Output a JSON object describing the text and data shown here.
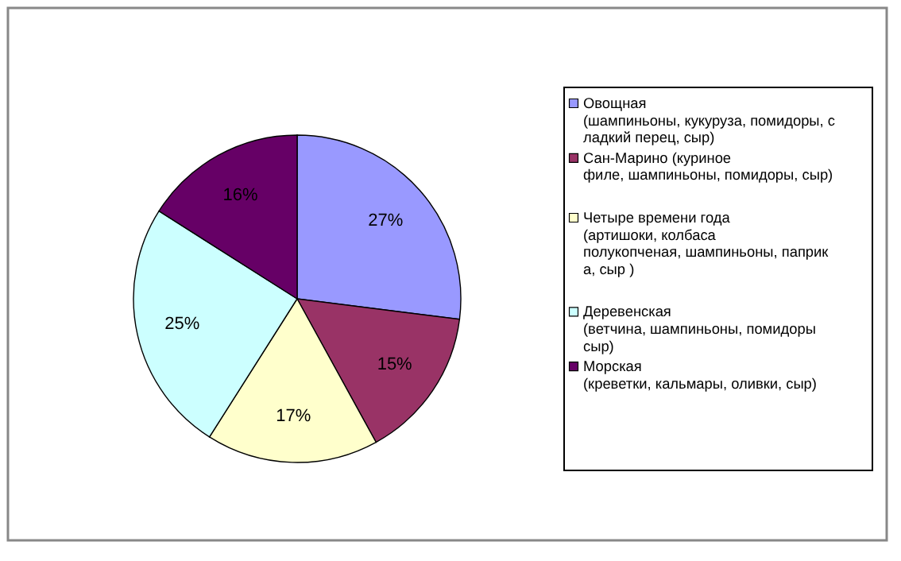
{
  "chart_data": {
    "type": "pie",
    "categories": [
      "Овощная\n(шампиньоны, кукуруза, помидоры, с\nладкий перец, сыр)",
      "Сан-Марино (куриное\nфиле, шампиньоны, помидоры, сыр)",
      "Четыре времени года\n(артишоки, колбаса\nполукопченая, шампиньоны, паприк\nа, сыр )",
      "Деревенская\n(ветчина, шампиньоны, помидоры\nсыр)",
      "Морская\n(креветки, кальмары, оливки, сыр)"
    ],
    "values": [
      27,
      15,
      17,
      25,
      16
    ],
    "value_labels": [
      "27%",
      "15%",
      "17%",
      "25%",
      "16%"
    ],
    "colors": [
      "#9999ff",
      "#993366",
      "#ffffcc",
      "#ccffff",
      "#660066"
    ],
    "legend": "right"
  }
}
